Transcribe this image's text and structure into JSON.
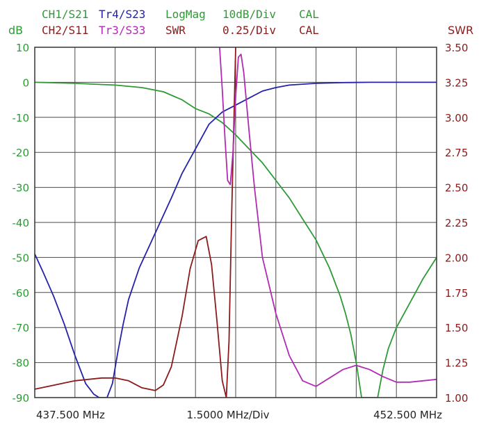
{
  "header": {
    "row1": [
      {
        "text": "CH1/S21",
        "color": "#2e9a36"
      },
      {
        "text": "Tr4/S23",
        "color": "#2222aa"
      },
      {
        "text": "LogMag",
        "color": "#2e9a36"
      },
      {
        "text": "10dB/Div",
        "color": "#2e9a36"
      },
      {
        "text": "CAL",
        "color": "#2e9a36"
      }
    ],
    "row2": [
      {
        "text": "CH2/S11",
        "color": "#8b1a1a"
      },
      {
        "text": "Tr3/S33",
        "color": "#b12ab1"
      },
      {
        "text": "SWR",
        "color": "#8b1a1a"
      },
      {
        "text": "0.25/Div",
        "color": "#8b1a1a"
      },
      {
        "text": "CAL",
        "color": "#8b1a1a"
      }
    ]
  },
  "chart_data": {
    "type": "line",
    "left_axis": {
      "label": "dB",
      "color": "#2e9a36",
      "ylim": [
        -90,
        10
      ],
      "ticks": [
        "10",
        "0",
        "-10",
        "-20",
        "-30",
        "-40",
        "-50",
        "-60",
        "-70",
        "-80",
        "-90"
      ]
    },
    "right_axis": {
      "label": "SWR",
      "color": "#8b1a1a",
      "ylim": [
        1.0,
        3.5
      ],
      "ticks": [
        "3.50",
        "3.25",
        "3.00",
        "2.75",
        "2.50",
        "2.25",
        "2.00",
        "1.75",
        "1.50",
        "1.25",
        "1.00"
      ]
    },
    "x_axis": {
      "start_label": "437.500 MHz",
      "div_label": "1.5000 MHz/Div",
      "stop_label": "452.500 MHz",
      "xlim_mhz": [
        437.5,
        452.5
      ]
    },
    "grid": true,
    "series": [
      {
        "name": "CH1/S21",
        "axis": "left",
        "color": "#2e9a36",
        "x": [
          437.5,
          439.0,
          440.5,
          441.5,
          442.3,
          443.0,
          443.5,
          444.0,
          444.5,
          445.0,
          445.5,
          446.0,
          446.5,
          447.0,
          447.5,
          448.0,
          448.5,
          448.9,
          449.1,
          449.3,
          449.5,
          449.7,
          449.9,
          450.1,
          450.3,
          450.5,
          450.7,
          451.0,
          451.5,
          452.0,
          452.5
        ],
        "y": [
          0,
          -0.3,
          -0.8,
          -1.5,
          -2.7,
          -5,
          -7.5,
          -9,
          -11.5,
          -15,
          -19,
          -23,
          -28,
          -33,
          -39,
          -45,
          -53,
          -61,
          -66,
          -72,
          -80,
          -90,
          -90,
          -90,
          -90,
          -82,
          -76,
          -70,
          -63,
          -56,
          -50
        ]
      },
      {
        "name": "Tr4/S23",
        "axis": "left",
        "color": "#2222aa",
        "x": [
          437.5,
          437.8,
          438.2,
          438.6,
          439.0,
          439.4,
          439.7,
          439.9,
          440.0,
          440.2,
          440.4,
          440.6,
          440.8,
          441.0,
          441.4,
          442.0,
          442.6,
          443.0,
          443.5,
          444.0,
          444.5,
          445.0,
          445.5,
          446.0,
          446.5,
          447.0,
          448.0,
          449.0,
          450.0,
          451.0,
          452.5
        ],
        "y": [
          -49,
          -54,
          -61,
          -69,
          -78,
          -86,
          -89,
          -90,
          -90,
          -90,
          -86,
          -77,
          -69,
          -62,
          -53,
          -43,
          -33,
          -26,
          -19,
          -12,
          -8.5,
          -6.5,
          -4.5,
          -2.5,
          -1.5,
          -0.8,
          -0.3,
          -0.1,
          0,
          0,
          0
        ]
      },
      {
        "name": "CH2/S11",
        "axis": "right",
        "color": "#8b1a1a",
        "x": [
          437.5,
          438.0,
          439.0,
          440.0,
          440.5,
          441.0,
          441.5,
          442.0,
          442.3,
          442.6,
          443.0,
          443.3,
          443.6,
          443.9,
          444.1,
          444.3,
          444.5,
          444.65,
          444.75,
          444.85,
          445.0
        ],
        "y": [
          1.06,
          1.08,
          1.12,
          1.14,
          1.14,
          1.12,
          1.07,
          1.05,
          1.09,
          1.22,
          1.58,
          1.92,
          2.12,
          2.15,
          1.95,
          1.55,
          1.12,
          1.0,
          1.4,
          2.3,
          3.5
        ]
      },
      {
        "name": "Tr3/S33",
        "axis": "right",
        "color": "#b12ab1",
        "x": [
          444.4,
          444.5,
          444.6,
          444.7,
          444.8,
          444.9,
          445.0,
          445.1,
          445.2,
          445.3,
          445.5,
          445.7,
          446.0,
          446.5,
          447.0,
          447.5,
          448.0,
          448.5,
          449.0,
          449.5,
          450.0,
          450.5,
          451.0,
          451.5,
          452.0,
          452.5
        ],
        "y": [
          3.5,
          3.2,
          2.85,
          2.55,
          2.52,
          2.75,
          3.15,
          3.43,
          3.45,
          3.32,
          2.9,
          2.5,
          2.0,
          1.6,
          1.3,
          1.12,
          1.08,
          1.14,
          1.2,
          1.23,
          1.2,
          1.15,
          1.11,
          1.11,
          1.12,
          1.13
        ]
      }
    ]
  }
}
